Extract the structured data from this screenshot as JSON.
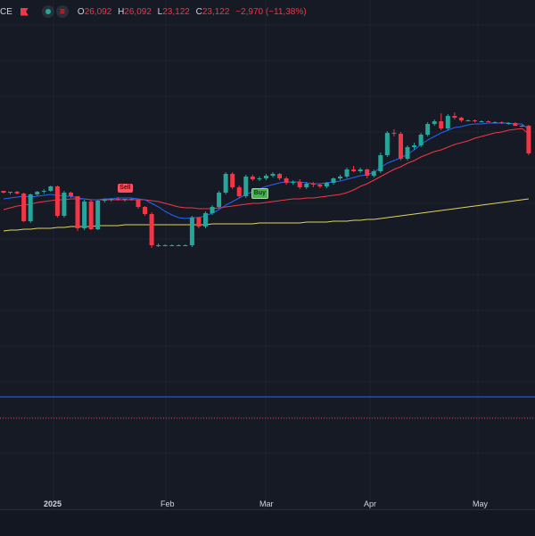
{
  "legend": {
    "symbol_suffix": "CE",
    "flag_icon": "flag-icon",
    "eye_icon": "eye-icon",
    "menu_icon": "menu-icon",
    "menu_glyph": "≡",
    "open_key": "O",
    "open": "26,092",
    "high_key": "H",
    "high": "26,092",
    "low_key": "L",
    "low": "23,122",
    "close_key": "C",
    "close": "23,122",
    "change": "−2,970 (−11,38%)"
  },
  "signals": {
    "sell_label": "Sell",
    "buy_label": "Buy"
  },
  "x_labels": [
    "2025",
    "Feb",
    "Mar",
    "Apr",
    "May"
  ],
  "colors": {
    "up": "#26a69a",
    "down": "#f23645",
    "ma_fast": "#2962ff",
    "ma_mid": "#f23645",
    "ma_slow": "#e2d45b",
    "hline": "#2962ff",
    "hline_dotted": "#f23645"
  },
  "chart_data": {
    "type": "candlestick",
    "x_axis": "date",
    "y_range": [
      0,
      460
    ],
    "candles": [
      {
        "o": 306,
        "h": 306,
        "l": 303,
        "c": 304
      },
      {
        "o": 304,
        "h": 305,
        "l": 302,
        "c": 305
      },
      {
        "o": 305,
        "h": 306,
        "l": 302,
        "c": 303
      },
      {
        "o": 303,
        "h": 304,
        "l": 271,
        "c": 272
      },
      {
        "o": 272,
        "h": 303,
        "l": 270,
        "c": 302
      },
      {
        "o": 302,
        "h": 306,
        "l": 300,
        "c": 305
      },
      {
        "o": 305,
        "h": 308,
        "l": 303,
        "c": 306
      },
      {
        "o": 306,
        "h": 312,
        "l": 305,
        "c": 311
      },
      {
        "o": 311,
        "h": 312,
        "l": 276,
        "c": 278
      },
      {
        "o": 278,
        "h": 306,
        "l": 276,
        "c": 304
      },
      {
        "o": 304,
        "h": 305,
        "l": 298,
        "c": 300
      },
      {
        "o": 300,
        "h": 300,
        "l": 261,
        "c": 264
      },
      {
        "o": 264,
        "h": 296,
        "l": 262,
        "c": 294
      },
      {
        "o": 294,
        "h": 296,
        "l": 262,
        "c": 263
      },
      {
        "o": 263,
        "h": 296,
        "l": 262,
        "c": 295
      },
      {
        "o": 295,
        "h": 297,
        "l": 293,
        "c": 296
      },
      {
        "o": 296,
        "h": 298,
        "l": 294,
        "c": 297
      },
      {
        "o": 297,
        "h": 299,
        "l": 295,
        "c": 296
      },
      {
        "o": 296,
        "h": 297,
        "l": 294,
        "c": 297
      },
      {
        "o": 297,
        "h": 298,
        "l": 295,
        "c": 296
      },
      {
        "o": 296,
        "h": 297,
        "l": 286,
        "c": 288
      },
      {
        "o": 288,
        "h": 289,
        "l": 278,
        "c": 280
      },
      {
        "o": 280,
        "h": 282,
        "l": 242,
        "c": 245
      },
      {
        "o": 245,
        "h": 247,
        "l": 243,
        "c": 245
      },
      {
        "o": 245,
        "h": 246,
        "l": 244,
        "c": 245
      },
      {
        "o": 245,
        "h": 246,
        "l": 244,
        "c": 245
      },
      {
        "o": 245,
        "h": 246,
        "l": 244,
        "c": 245
      },
      {
        "o": 245,
        "h": 246,
        "l": 244,
        "c": 245
      },
      {
        "o": 245,
        "h": 278,
        "l": 243,
        "c": 276
      },
      {
        "o": 276,
        "h": 277,
        "l": 264,
        "c": 266
      },
      {
        "o": 266,
        "h": 283,
        "l": 264,
        "c": 281
      },
      {
        "o": 281,
        "h": 290,
        "l": 279,
        "c": 288
      },
      {
        "o": 288,
        "h": 306,
        "l": 286,
        "c": 304
      },
      {
        "o": 304,
        "h": 327,
        "l": 302,
        "c": 325
      },
      {
        "o": 325,
        "h": 327,
        "l": 308,
        "c": 310
      },
      {
        "o": 310,
        "h": 312,
        "l": 298,
        "c": 300
      },
      {
        "o": 300,
        "h": 324,
        "l": 298,
        "c": 322
      },
      {
        "o": 322,
        "h": 324,
        "l": 317,
        "c": 319
      },
      {
        "o": 319,
        "h": 322,
        "l": 317,
        "c": 320
      },
      {
        "o": 320,
        "h": 325,
        "l": 318,
        "c": 323
      },
      {
        "o": 323,
        "h": 327,
        "l": 321,
        "c": 325
      },
      {
        "o": 325,
        "h": 326,
        "l": 318,
        "c": 320
      },
      {
        "o": 320,
        "h": 322,
        "l": 313,
        "c": 315
      },
      {
        "o": 315,
        "h": 318,
        "l": 313,
        "c": 316
      },
      {
        "o": 316,
        "h": 319,
        "l": 308,
        "c": 310
      },
      {
        "o": 310,
        "h": 316,
        "l": 308,
        "c": 314
      },
      {
        "o": 314,
        "h": 316,
        "l": 310,
        "c": 313
      },
      {
        "o": 313,
        "h": 314,
        "l": 309,
        "c": 311
      },
      {
        "o": 311,
        "h": 316,
        "l": 309,
        "c": 315
      },
      {
        "o": 315,
        "h": 321,
        "l": 313,
        "c": 320
      },
      {
        "o": 320,
        "h": 324,
        "l": 318,
        "c": 322
      },
      {
        "o": 322,
        "h": 332,
        "l": 320,
        "c": 330
      },
      {
        "o": 330,
        "h": 334,
        "l": 327,
        "c": 328
      },
      {
        "o": 328,
        "h": 332,
        "l": 326,
        "c": 330
      },
      {
        "o": 330,
        "h": 331,
        "l": 320,
        "c": 323
      },
      {
        "o": 323,
        "h": 330,
        "l": 321,
        "c": 328
      },
      {
        "o": 328,
        "h": 349,
        "l": 326,
        "c": 346
      },
      {
        "o": 346,
        "h": 373,
        "l": 344,
        "c": 371
      },
      {
        "o": 371,
        "h": 375,
        "l": 367,
        "c": 370
      },
      {
        "o": 370,
        "h": 372,
        "l": 340,
        "c": 342
      },
      {
        "o": 342,
        "h": 357,
        "l": 340,
        "c": 355
      },
      {
        "o": 355,
        "h": 360,
        "l": 352,
        "c": 357
      },
      {
        "o": 357,
        "h": 371,
        "l": 355,
        "c": 369
      },
      {
        "o": 369,
        "h": 383,
        "l": 367,
        "c": 381
      },
      {
        "o": 381,
        "h": 386,
        "l": 379,
        "c": 384
      },
      {
        "o": 384,
        "h": 393,
        "l": 374,
        "c": 376
      },
      {
        "o": 376,
        "h": 392,
        "l": 374,
        "c": 390
      },
      {
        "o": 390,
        "h": 394,
        "l": 386,
        "c": 388
      },
      {
        "o": 388,
        "h": 389,
        "l": 383,
        "c": 385
      },
      {
        "o": 385,
        "h": 386,
        "l": 384,
        "c": 385
      },
      {
        "o": 385,
        "h": 386,
        "l": 383,
        "c": 384
      },
      {
        "o": 384,
        "h": 385,
        "l": 383,
        "c": 384
      },
      {
        "o": 384,
        "h": 385,
        "l": 383,
        "c": 383
      },
      {
        "o": 383,
        "h": 384,
        "l": 382,
        "c": 383
      },
      {
        "o": 383,
        "h": 384,
        "l": 381,
        "c": 382
      },
      {
        "o": 382,
        "h": 383,
        "l": 380,
        "c": 382
      },
      {
        "o": 382,
        "h": 383,
        "l": 380,
        "c": 379
      },
      {
        "o": 379,
        "h": 380,
        "l": 378,
        "c": 379
      },
      {
        "o": 379,
        "h": 380,
        "l": 346,
        "c": 348
      }
    ],
    "ma_fast": [
      297,
      298,
      299,
      300,
      299,
      300,
      301,
      302,
      301,
      300,
      300,
      298,
      297,
      296,
      296,
      297,
      297,
      298,
      298,
      298,
      297,
      296,
      292,
      288,
      283,
      279,
      276,
      275,
      276,
      276,
      278,
      281,
      285,
      290,
      294,
      298,
      302,
      305,
      308,
      311,
      313,
      315,
      316,
      316,
      316,
      315,
      314,
      314,
      315,
      316,
      317,
      319,
      321,
      323,
      324,
      327,
      332,
      337,
      340,
      343,
      347,
      352,
      358,
      363,
      367,
      371,
      374,
      377,
      378,
      380,
      381,
      381,
      382,
      382,
      382,
      382,
      381,
      381,
      375
    ],
    "ma_mid": [
      285,
      287,
      289,
      290,
      291,
      293,
      294,
      295,
      296,
      296,
      297,
      297,
      297,
      296,
      296,
      296,
      296,
      296,
      296,
      296,
      296,
      296,
      295,
      294,
      292,
      290,
      288,
      287,
      287,
      286,
      286,
      286,
      287,
      288,
      289,
      290,
      291,
      292,
      292,
      293,
      294,
      295,
      296,
      297,
      297,
      298,
      298,
      299,
      300,
      301,
      302,
      304,
      307,
      311,
      314,
      318,
      322,
      326,
      330,
      333,
      337,
      340,
      344,
      347,
      350,
      352,
      355,
      358,
      360,
      362,
      365,
      367,
      369,
      371,
      372,
      374,
      375,
      376,
      370
    ],
    "ma_slow": [
      261,
      262,
      262,
      263,
      263,
      264,
      264,
      264,
      265,
      265,
      266,
      266,
      266,
      266,
      267,
      267,
      267,
      267,
      268,
      268,
      268,
      268,
      268,
      268,
      268,
      268,
      268,
      268,
      268,
      268,
      268,
      269,
      269,
      269,
      269,
      269,
      269,
      269,
      270,
      270,
      270,
      270,
      270,
      270,
      270,
      271,
      271,
      271,
      271,
      272,
      272,
      272,
      273,
      273,
      274,
      274,
      275,
      276,
      277,
      278,
      279,
      280,
      281,
      282,
      283,
      284,
      285,
      286,
      287,
      288,
      289,
      290,
      291,
      292,
      293,
      294,
      295,
      296,
      297
    ],
    "signals": [
      {
        "type": "sell",
        "index": 18
      },
      {
        "type": "buy",
        "index": 38
      }
    ],
    "horizontal_lines": [
      {
        "y": 75,
        "style": "solid"
      },
      {
        "y": 51,
        "style": "dotted"
      }
    ]
  }
}
